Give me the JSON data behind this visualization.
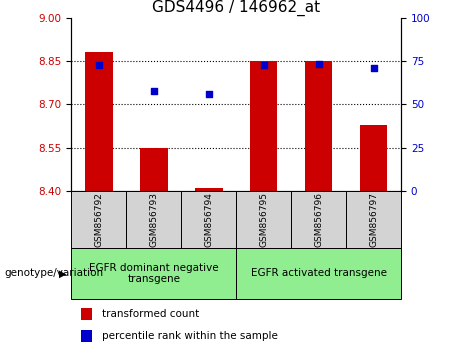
{
  "title": "GDS4496 / 146962_at",
  "samples": [
    "GSM856792",
    "GSM856793",
    "GSM856794",
    "GSM856795",
    "GSM856796",
    "GSM856797"
  ],
  "bar_values": [
    8.88,
    8.55,
    8.41,
    8.85,
    8.85,
    8.63
  ],
  "bar_base": 8.4,
  "percentile_values": [
    8.835,
    8.745,
    8.735,
    8.835,
    8.84,
    8.825
  ],
  "ylim_left": [
    8.4,
    9.0
  ],
  "ylim_right": [
    0,
    100
  ],
  "yticks_left": [
    8.4,
    8.55,
    8.7,
    8.85,
    9.0
  ],
  "yticks_right": [
    0,
    25,
    50,
    75,
    100
  ],
  "bar_color": "#cc0000",
  "dot_color": "#0000cc",
  "group1_label": "EGFR dominant negative\ntransgene",
  "group2_label": "EGFR activated transgene",
  "group_bg_color": "#90ee90",
  "sample_bg_color": "#d3d3d3",
  "legend_red_label": "transformed count",
  "legend_blue_label": "percentile rank within the sample",
  "xlabel_left": "genotype/variation",
  "title_fontsize": 11,
  "tick_fontsize": 7.5,
  "sample_fontsize": 6.5,
  "group_fontsize": 7.5,
  "legend_fontsize": 7.5
}
